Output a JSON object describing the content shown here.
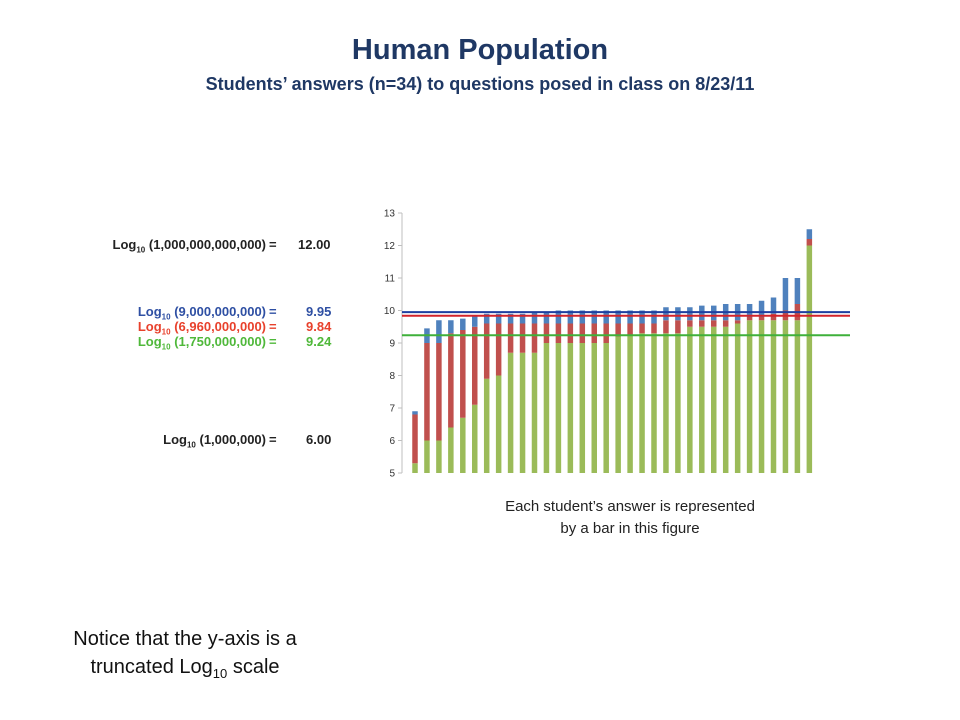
{
  "title": "Human Population",
  "subtitle": "Students’ answers (n=34) to questions posed in class on 8/23/11",
  "equations": [
    {
      "prefix": "Log",
      "base": "10",
      "arg": "(1,000,000,000,000)",
      "eq": "=",
      "value": "12.00",
      "color": "#222222"
    },
    {
      "prefix": "Log",
      "base": "10",
      "arg": "(9,000,000,000)",
      "eq": "=",
      "value": "9.95",
      "color": "#2e4fa3"
    },
    {
      "prefix": "Log",
      "base": "10",
      "arg": "(6,960,000,000)",
      "eq": "=",
      "value": "9.84",
      "color": "#e8412c"
    },
    {
      "prefix": "Log",
      "base": "10",
      "arg": "(1,750,000,000)",
      "eq": "=",
      "value": "9.24",
      "color": "#4fb83a"
    },
    {
      "prefix": "Log",
      "base": "10",
      "arg": "(1,000,000)",
      "eq": "=",
      "value": "6.00",
      "color": "#222222"
    }
  ],
  "caption": {
    "line1": "Each student’s answer is represented",
    "line2": "by a bar in this figure"
  },
  "note": {
    "line1": "Notice that the y-axis is a",
    "line2_prefix": "truncated Log",
    "line2_sub": "10",
    "line2_suffix": " scale"
  },
  "colors": {
    "green": "#9bbb59",
    "red": "#c0504d",
    "blue": "#4f81bd",
    "ref_blue": "#1f3fa0",
    "ref_red": "#d4232a",
    "ref_green": "#3fb03a",
    "axis": "#bfbfbf",
    "tick_text": "#333333"
  },
  "chart_data": {
    "type": "bar",
    "stacked": true,
    "y_scale": "log10",
    "ylim": [
      5,
      13
    ],
    "yticks": [
      5,
      6,
      7,
      8,
      9,
      10,
      11,
      12,
      13
    ],
    "grid": false,
    "legend": "none",
    "series": [
      {
        "color": "green",
        "values": [
          5.3,
          6.0,
          6.0,
          6.4,
          6.7,
          7.1,
          7.9,
          8.0,
          8.7,
          8.7,
          8.7,
          9.0,
          9.0,
          9.0,
          9.0,
          9.0,
          9.0,
          9.2,
          9.24,
          9.3,
          9.3,
          9.3,
          9.3,
          9.5,
          9.5,
          9.5,
          9.5,
          9.6,
          9.7,
          9.7,
          9.7,
          9.7,
          9.7,
          12.0
        ]
      },
      {
        "color": "red",
        "values": [
          6.8,
          9.0,
          9.0,
          9.3,
          9.4,
          9.5,
          9.6,
          9.6,
          9.6,
          9.6,
          9.6,
          9.6,
          9.6,
          9.6,
          9.6,
          9.6,
          9.6,
          9.6,
          9.6,
          9.6,
          9.6,
          9.7,
          9.7,
          9.7,
          9.7,
          9.7,
          9.7,
          9.7,
          9.8,
          9.8,
          9.9,
          10.0,
          10.2,
          12.2
        ]
      },
      {
        "color": "blue",
        "values": [
          6.9,
          9.45,
          9.7,
          9.7,
          9.75,
          9.85,
          9.9,
          9.9,
          9.9,
          9.9,
          9.95,
          9.95,
          10.0,
          10.0,
          10.0,
          10.0,
          10.0,
          10.0,
          10.0,
          10.0,
          10.0,
          10.1,
          10.1,
          10.1,
          10.15,
          10.15,
          10.2,
          10.2,
          10.2,
          10.3,
          10.4,
          11.0,
          11.0,
          12.5
        ]
      }
    ],
    "reference_lines": [
      {
        "value": 9.95,
        "color": "ref_blue"
      },
      {
        "value": 9.84,
        "color": "ref_red"
      },
      {
        "value": 9.24,
        "color": "ref_green"
      }
    ]
  }
}
